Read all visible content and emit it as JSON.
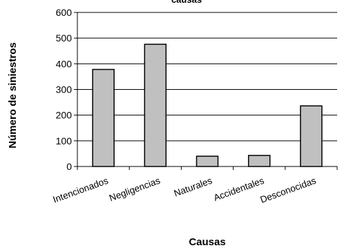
{
  "chart_data": {
    "type": "bar",
    "title": "causas",
    "xlabel": "Causas",
    "ylabel": "Número de siniestros",
    "categories": [
      "Intencionados",
      "Negligencias",
      "Naturales",
      "Accidentales",
      "Desconocidas"
    ],
    "values": [
      378,
      476,
      40,
      43,
      236
    ],
    "ylim": [
      0,
      600
    ],
    "yticks": [
      0,
      100,
      200,
      300,
      400,
      500,
      600
    ],
    "grid": true,
    "legend": "none",
    "bar_color": "#c0c0c0",
    "bar_edge_color": "#000000"
  }
}
